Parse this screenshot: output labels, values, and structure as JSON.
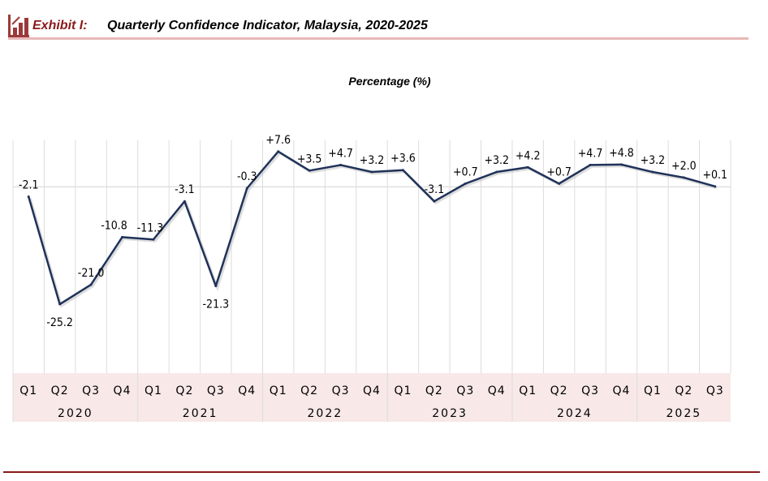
{
  "header": {
    "exhibit": "Exhibit  I:",
    "title": "Quarterly Confidence Indicator, Malaysia, 2020-2025"
  },
  "chart_data": {
    "type": "line",
    "title": "Quarterly Confidence Indicator, Malaysia, 2020-2025",
    "ylabel": "Percentage (%)",
    "ylim": [
      -40,
      10
    ],
    "grid": true,
    "categories": [
      "Q1",
      "Q2",
      "Q3",
      "Q4",
      "Q1",
      "Q2",
      "Q3",
      "Q4",
      "Q1",
      "Q2",
      "Q3",
      "Q4",
      "Q1",
      "Q2",
      "Q3",
      "Q4",
      "Q1",
      "Q2",
      "Q3",
      "Q4",
      "Q1",
      "Q2",
      "Q3"
    ],
    "years": [
      "2020",
      "2021",
      "2022",
      "2023",
      "2024",
      "2025"
    ],
    "values": [
      -2.1,
      -25.2,
      -21.0,
      -10.8,
      -11.3,
      -3.1,
      -21.3,
      -0.3,
      7.6,
      3.5,
      4.7,
      3.2,
      3.6,
      -3.1,
      0.7,
      3.2,
      4.2,
      0.7,
      4.7,
      4.8,
      3.2,
      2.0,
      0.1
    ],
    "labels": [
      "-2.1",
      "-25.2",
      "-21.0",
      "-10.8",
      "-11.3",
      "-3.1",
      "-21.3",
      "-0.3",
      "+7.6",
      "+3.5",
      "+4.7",
      "+3.2",
      "+3.6",
      "-3.1",
      "+0.7",
      "+3.2",
      "+4.2",
      "+0.7",
      "+4.7",
      "+4.8",
      "+3.2",
      "+2.0",
      "+0.1"
    ],
    "line_color": "#1f3259",
    "axis_band_color": "#f8e8e8"
  }
}
